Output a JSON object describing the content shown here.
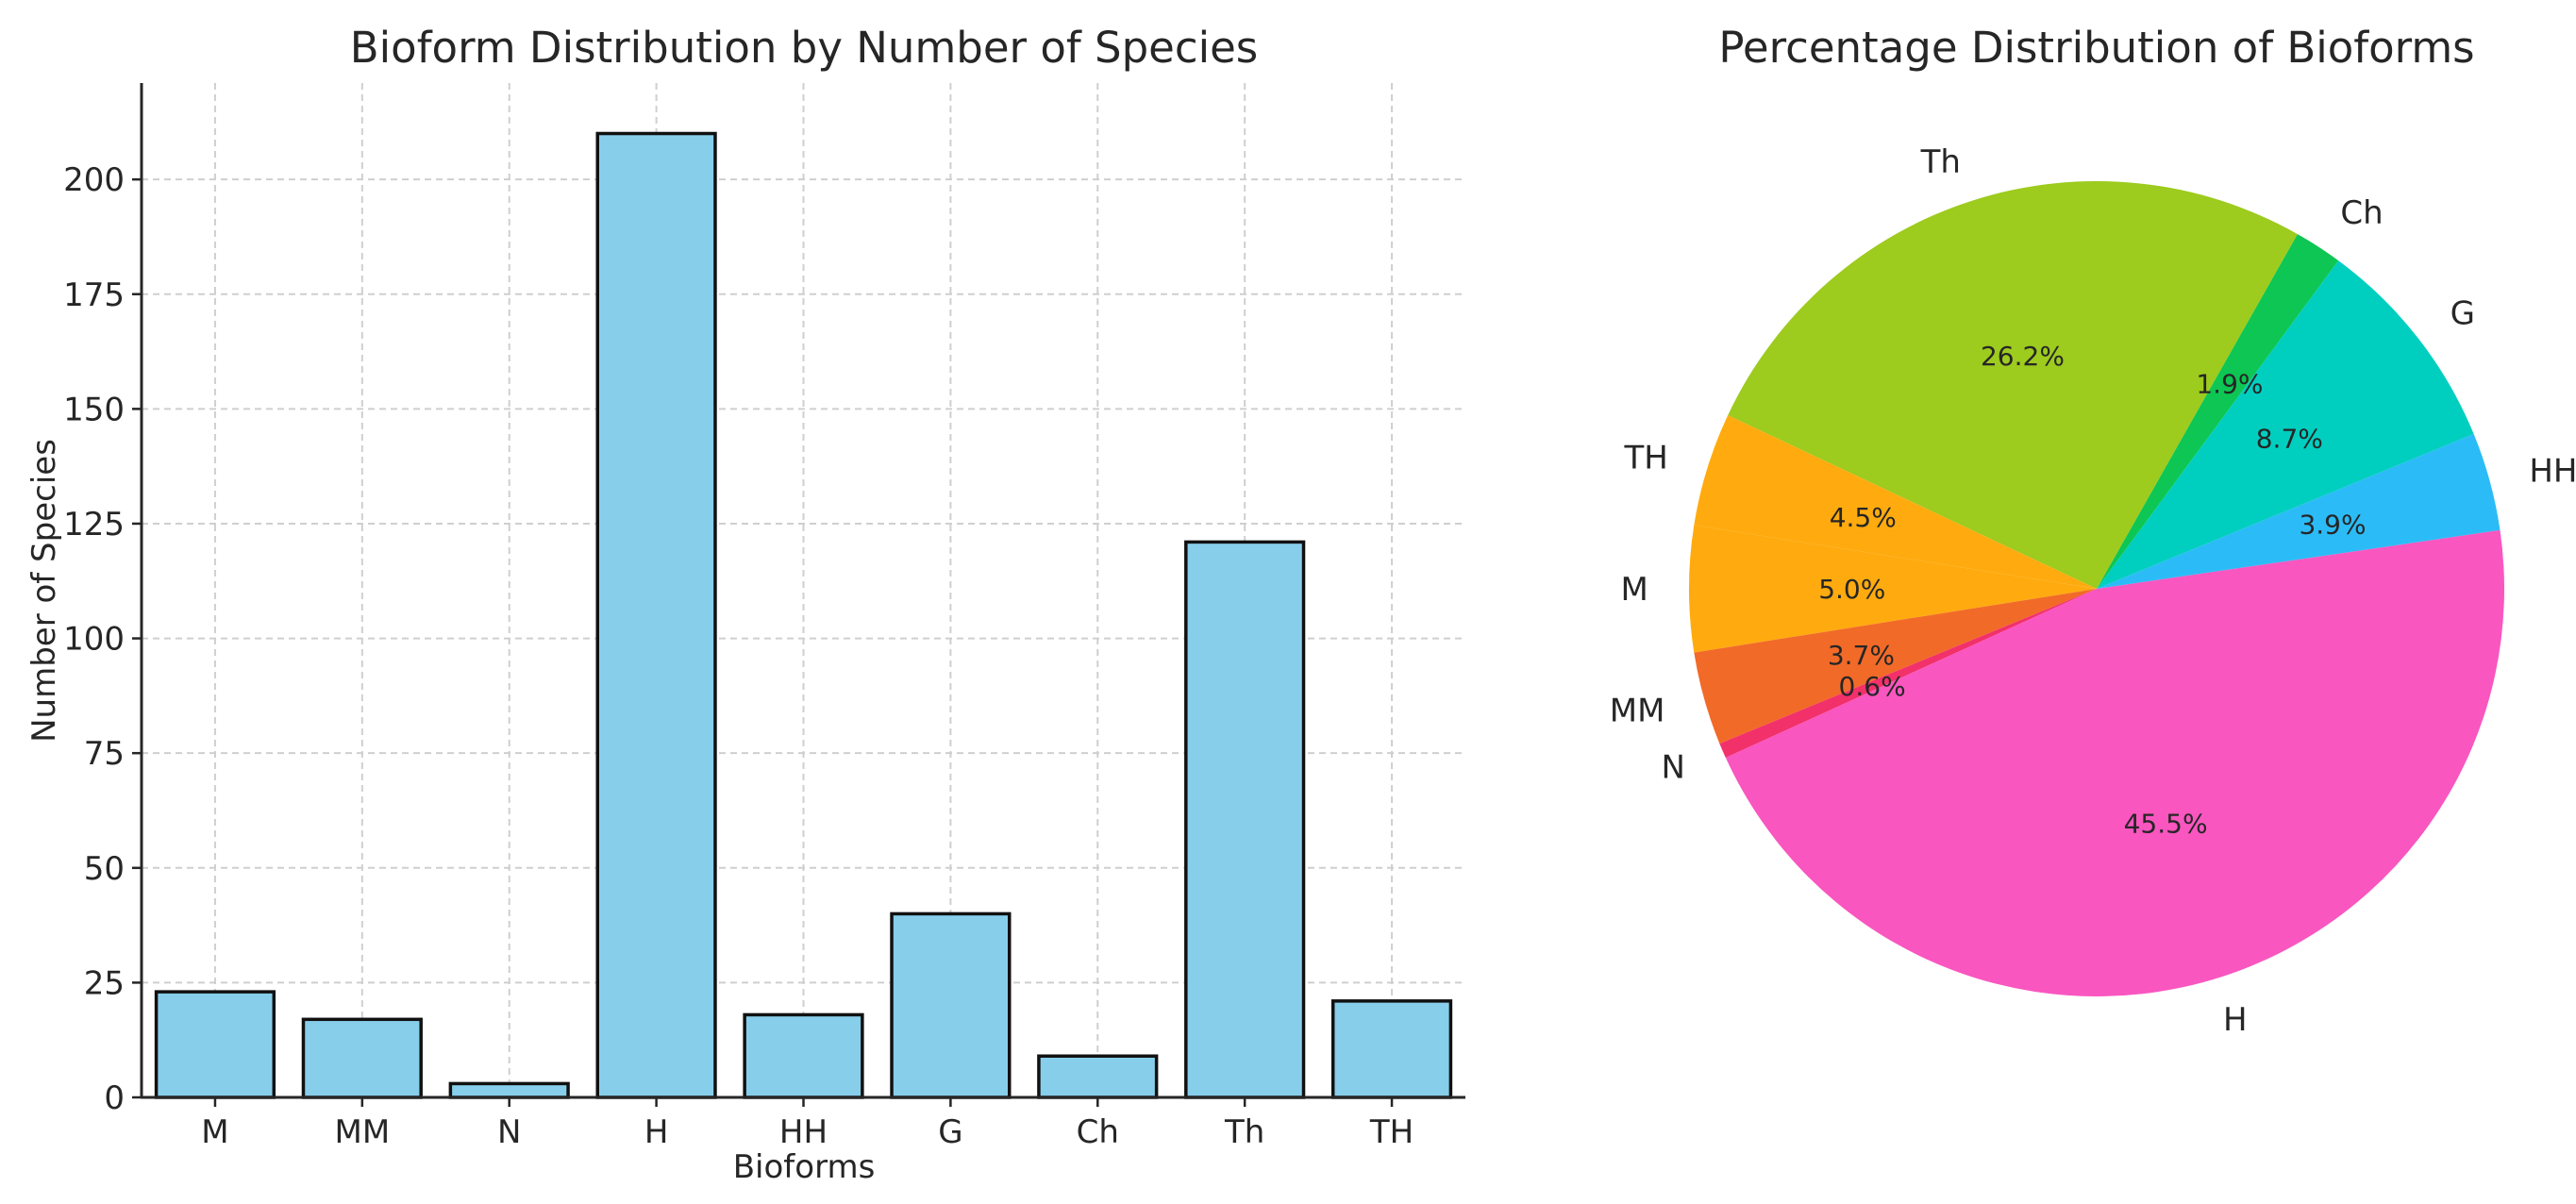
{
  "chart_data": [
    {
      "type": "bar",
      "title": "Bioform Distribution by Number of Species",
      "xlabel": "Bioforms",
      "ylabel": "Number of Species",
      "categories": [
        "M",
        "MM",
        "N",
        "H",
        "HH",
        "G",
        "Ch",
        "Th",
        "TH"
      ],
      "values": [
        23,
        17,
        3,
        210,
        18,
        40,
        9,
        121,
        21
      ],
      "ylim": [
        0,
        221
      ],
      "yticks": [
        0,
        25,
        50,
        75,
        100,
        125,
        150,
        175,
        200
      ],
      "bar_color": "#87CEEB",
      "grid": true
    },
    {
      "type": "pie",
      "title": "Percentage Distribution of Bioforms",
      "slices": [
        {
          "label": "M",
          "value": 5.0,
          "pct": "5.0%",
          "color": "#FFAB0F"
        },
        {
          "label": "MM",
          "value": 3.7,
          "pct": "3.7%",
          "color": "#F26A28"
        },
        {
          "label": "N",
          "value": 0.6,
          "pct": "0.6%",
          "color": "#F2306A"
        },
        {
          "label": "H",
          "value": 45.5,
          "pct": "45.5%",
          "color": "#F956C0"
        },
        {
          "label": "HH",
          "value": 3.9,
          "pct": "3.9%",
          "color": "#2BBCF7"
        },
        {
          "label": "G",
          "value": 8.7,
          "pct": "8.7%",
          "color": "#00CFC0"
        },
        {
          "label": "Ch",
          "value": 1.9,
          "pct": "1.9%",
          "color": "#0DC653"
        },
        {
          "label": "Th",
          "value": 26.2,
          "pct": "26.2%",
          "color": "#9DCB1E"
        },
        {
          "label": "TH",
          "value": 4.5,
          "pct": "4.5%",
          "color": "#FFAB0F"
        }
      ]
    }
  ]
}
